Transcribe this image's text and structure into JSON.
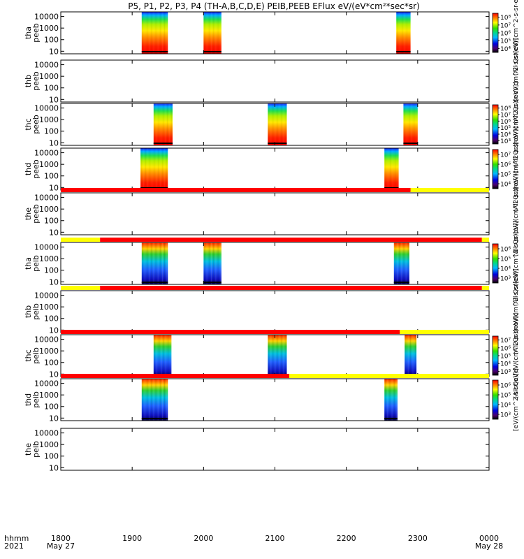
{
  "title": "P5, P1, P2, P3, P4 (TH-A,B,C,D,E) PEIB,PEEB EFlux eV/(eV*cm²*sec*sr)",
  "colors": {
    "flag_red": "#ff0000",
    "flag_yellow": "#ffff00",
    "frame": "#000000"
  },
  "chart_data": {
    "type": "heatmap",
    "x_range": [
      "1800",
      "0000"
    ],
    "x_axis_label": [
      "hhmm",
      "2021"
    ],
    "x_ticks": [
      {
        "label": "1800",
        "sub": "May 27",
        "x": "18:00"
      },
      {
        "label": "1900",
        "sub": "",
        "x": "19:00"
      },
      {
        "label": "2000",
        "sub": "",
        "x": "20:00"
      },
      {
        "label": "2100",
        "sub": "",
        "x": "21:00"
      },
      {
        "label": "2200",
        "sub": "",
        "x": "22:00"
      },
      {
        "label": "2300",
        "sub": "",
        "x": "23:00"
      },
      {
        "label": "0000",
        "sub": "May 28",
        "x": "24:00"
      }
    ],
    "y_scale": "log",
    "y_range_eV": [
      6,
      25000
    ],
    "y_ticks": [
      "10",
      "100",
      "1000",
      "10000"
    ],
    "panels": [
      {
        "ylabel": [
          "tha",
          "peeb"
        ],
        "colorbar": [
          "10⁴",
          "10⁵",
          "10⁶",
          "10⁷",
          "10⁸"
        ],
        "colorbar_label": "(All Qs)[eV/(cm^2-s-sr-eV)]",
        "flag": null,
        "blocks": [
          {
            "start": "19:08",
            "end": "19:30",
            "kind": "e"
          },
          {
            "start": "20:00",
            "end": "20:15",
            "kind": "e"
          },
          {
            "start": "22:42",
            "end": "22:54",
            "kind": "e"
          }
        ]
      },
      {
        "ylabel": [
          "thb",
          "peeb"
        ],
        "colorbar": [],
        "colorbar_label": "(All Qs)[eV/(cm^2-s-sr-eV)]",
        "flag": null,
        "blocks": []
      },
      {
        "ylabel": [
          "thc",
          "peeb"
        ],
        "colorbar": [
          "10³",
          "10⁴",
          "10⁵",
          "10⁶",
          "10⁷",
          "10⁸"
        ],
        "colorbar_label": "(All Qs)[eV/(cm^2-s-sr-eV)]",
        "flag": null,
        "blocks": [
          {
            "start": "19:18",
            "end": "19:34",
            "kind": "e"
          },
          {
            "start": "20:54",
            "end": "21:10",
            "kind": "e"
          },
          {
            "start": "22:48",
            "end": "23:00",
            "kind": "e"
          }
        ]
      },
      {
        "ylabel": [
          "thd",
          "peeb"
        ],
        "colorbar": [
          "10⁴",
          "10⁵",
          "10⁶",
          "10⁷"
        ],
        "colorbar_label": "(All Qs)[eV/(cm^2-s-sr-eV)]",
        "flag": null,
        "blocks": [
          {
            "start": "19:07",
            "end": "19:30",
            "kind": "e"
          },
          {
            "start": "22:32",
            "end": "22:44",
            "kind": "e"
          }
        ]
      },
      {
        "ylabel": [
          "the",
          "peeb"
        ],
        "colorbar": [],
        "colorbar_label": "(All Qs)[eV/(cm^2-s-sr-eV)]",
        "flag": [
          {
            "start": "18:00",
            "end": "22:54",
            "color": "red"
          },
          {
            "start": "22:54",
            "end": "24:00",
            "color": "yellow"
          }
        ],
        "blocks": []
      },
      {
        "ylabel": [
          "tha",
          "peib"
        ],
        "colorbar": [
          "10³",
          "10⁴",
          "10⁵",
          "10⁶"
        ],
        "colorbar_label": "(All Qs)[eV/(cm^2-s-sr-eV)]",
        "flag": [
          {
            "start": "18:00",
            "end": "18:33",
            "color": "yellow"
          },
          {
            "start": "18:33",
            "end": "23:54",
            "color": "red"
          },
          {
            "start": "23:54",
            "end": "24:00",
            "color": "yellow"
          }
        ],
        "blocks": [
          {
            "start": "19:08",
            "end": "19:30",
            "kind": "i"
          },
          {
            "start": "20:00",
            "end": "20:15",
            "kind": "i"
          },
          {
            "start": "22:40",
            "end": "22:53",
            "kind": "i"
          }
        ]
      },
      {
        "ylabel": [
          "thb",
          "peib"
        ],
        "colorbar": [],
        "colorbar_label": "(All Qs)[eV/(cm^2-s-sr-eV)]",
        "flag": [
          {
            "start": "18:00",
            "end": "18:33",
            "color": "yellow"
          },
          {
            "start": "18:33",
            "end": "23:54",
            "color": "red"
          },
          {
            "start": "23:54",
            "end": "24:00",
            "color": "yellow"
          }
        ],
        "blocks": []
      },
      {
        "ylabel": [
          "thc",
          "peib"
        ],
        "colorbar": [
          "10³",
          "10⁴",
          "10⁵",
          "10⁶",
          "10⁷"
        ],
        "colorbar_label": "(All Qs)[eV/(cm^2-s-sr-eV)]",
        "flag": [
          {
            "start": "18:00",
            "end": "22:45",
            "color": "red"
          },
          {
            "start": "22:45",
            "end": "24:00",
            "color": "yellow"
          }
        ],
        "blocks": [
          {
            "start": "19:18",
            "end": "19:33",
            "kind": "i"
          },
          {
            "start": "20:54",
            "end": "21:10",
            "kind": "i"
          },
          {
            "start": "22:49",
            "end": "22:59",
            "kind": "i"
          }
        ]
      },
      {
        "ylabel": [
          "thd",
          "peib"
        ],
        "colorbar": [
          "10³",
          "10⁴",
          "10⁵",
          "10⁶"
        ],
        "colorbar_label": "[eV/(cm^2-s-sr-eV)]",
        "flag": [
          {
            "start": "18:00",
            "end": "21:12",
            "color": "red"
          },
          {
            "start": "21:12",
            "end": "24:00",
            "color": "yellow"
          }
        ],
        "blocks": [
          {
            "start": "19:08",
            "end": "19:30",
            "kind": "i"
          },
          {
            "start": "22:32",
            "end": "22:43",
            "kind": "i"
          }
        ]
      },
      {
        "ylabel": [
          "the",
          "peib"
        ],
        "colorbar": [],
        "colorbar_label": "",
        "flag": null,
        "blocks": []
      }
    ]
  }
}
